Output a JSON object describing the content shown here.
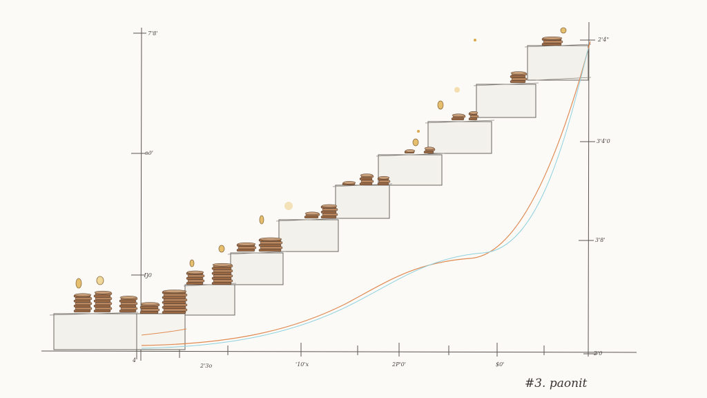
{
  "axes": {
    "left_ticks": [
      "7'8'",
      "вд'",
      "Ŋ0"
    ],
    "right_ticks": [
      "2'4\"",
      "3'4'0",
      "3'8'",
      "2'0"
    ],
    "bottom_ticks": [
      "4",
      "2'3o",
      "'10'х",
      "2P'0'",
      "$0'"
    ]
  },
  "signature": "#3. paonit",
  "colors": {
    "paper": "#fbfaf7",
    "ink": "#5b5550",
    "coin": "#a8784e",
    "gold": "#d9a94a",
    "curve_orange": "#e08a52",
    "curve_blue": "#8fd0de"
  },
  "icons": [
    "coin-stack-icon",
    "gold-coin-icon",
    "sparkle-icon"
  ]
}
